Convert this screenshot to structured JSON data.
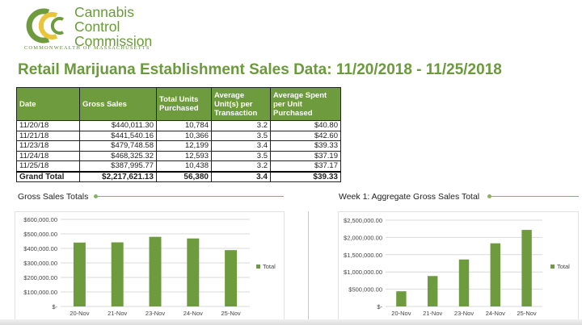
{
  "header": {
    "logo_lines": [
      "Cannabis",
      "Control",
      "Commission"
    ],
    "logo_subline": "COMMONWEALTH OF MASSACHUSETTS",
    "page_title": "Retail Marijuana Establishment Sales Data: 11/20/2018 - 11/25/2018"
  },
  "colors": {
    "accent_green": "#6e9b3d",
    "bar_green": "#6e9b3d",
    "logo_yellow": "#e8c53a"
  },
  "table": {
    "columns": [
      "Date",
      "Gross Sales",
      "Total Units Purchased",
      "Average Unit(s) per Transaction",
      "Average Spent per Unit Purchased"
    ],
    "rows": [
      [
        "11/20/18",
        "$440,011.30",
        "10,784",
        "3.2",
        "$40.80"
      ],
      [
        "11/21/18",
        "$441,540.16",
        "10,366",
        "3.5",
        "$42.60"
      ],
      [
        "11/23/18",
        "$479,748.58",
        "12,199",
        "3.4",
        "$39.33"
      ],
      [
        "11/24/18",
        "$468,325.32",
        "12,593",
        "3.5",
        "$37.19"
      ],
      [
        "11/25/18",
        "$387,995.77",
        "10,438",
        "3.2",
        "$37.17"
      ]
    ],
    "total": [
      "Grand Total",
      "$2,217,621.13",
      "56,380",
      "3.4",
      "$39.33"
    ]
  },
  "chart_data": [
    {
      "type": "bar",
      "title": "Gross Sales Totals",
      "categories": [
        "20-Nov",
        "21-Nov",
        "23-Nov",
        "24-Nov",
        "25-Nov"
      ],
      "series": [
        {
          "name": "Total",
          "values": [
            440011.3,
            441540.16,
            479748.58,
            468325.32,
            387995.77
          ]
        }
      ],
      "ylim": [
        0,
        600000
      ],
      "yticks": [
        0,
        100000,
        200000,
        300000,
        400000,
        500000,
        600000
      ],
      "ytick_labels": [
        "$-",
        "$100,000.00",
        "$200,000.00",
        "$300,000.00",
        "$400,000.00",
        "$500,000.00",
        "$600,000.00"
      ],
      "legend": "right",
      "grid": true
    },
    {
      "type": "bar",
      "title": "Week 1: Aggregate Gross Sales Total",
      "categories": [
        "20-Nov",
        "21-Nov",
        "23-Nov",
        "24-Nov",
        "25-Nov"
      ],
      "series": [
        {
          "name": "Total",
          "values": [
            440011.3,
            881551.46,
            1361300.04,
            1829625.36,
            2217621.13
          ]
        }
      ],
      "ylim": [
        0,
        2500000
      ],
      "yticks": [
        0,
        500000,
        1000000,
        1500000,
        2000000,
        2500000
      ],
      "ytick_labels": [
        "$-",
        "$500,000.00",
        "$1,000,000.00",
        "$1,500,000.00",
        "$2,000,000.00",
        "$2,500,000.00"
      ],
      "legend": "right",
      "grid": true
    }
  ]
}
